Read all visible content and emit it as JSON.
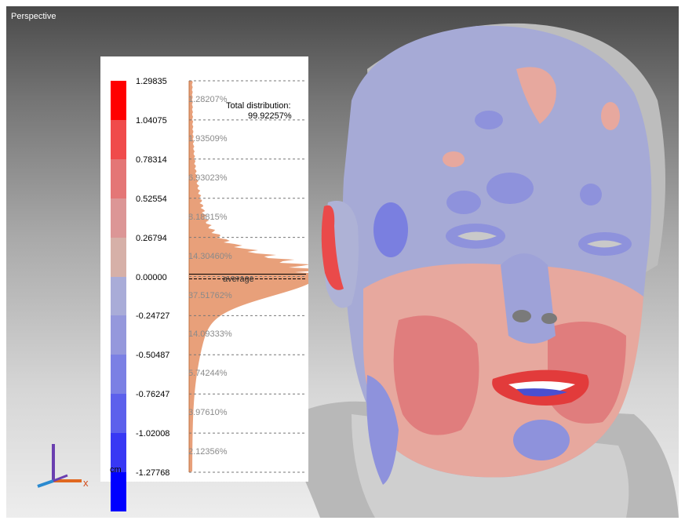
{
  "viewport": {
    "label": "Perspective"
  },
  "legend": {
    "ticks": [
      "1.29835",
      "1.04075",
      "0.78314",
      "0.52554",
      "0.26794",
      "0.00000",
      "-0.24727",
      "-0.50487",
      "-0.76247",
      "-1.02008",
      "-1.27768"
    ],
    "unit": "cm",
    "band_colors": [
      "#ff0000",
      "#f04b4b",
      "#e47676",
      "#dc9696",
      "#d6b0a8",
      "#a9acd8",
      "#9598dc",
      "#7b80e4",
      "#5c60ec",
      "#3838f4",
      "#0000ff"
    ],
    "percentages": [
      "1.28207%",
      "1.93509%",
      "6.93023%",
      "8.18815%",
      "14.30460%",
      "37.51762%",
      "14.09333%",
      "5.74244%",
      "3.97610%",
      "2.12356%"
    ],
    "total_label": "Total distribution:",
    "total_value": "99.92257%",
    "average_label": "average",
    "histogram_color": "#e8a07a"
  },
  "gizmo": {
    "x_label": "x"
  }
}
